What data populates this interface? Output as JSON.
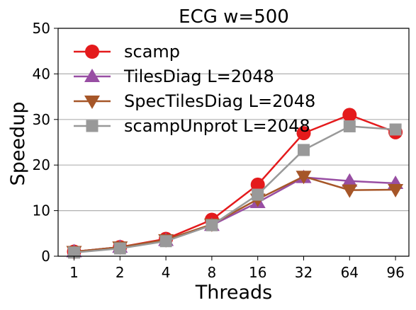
{
  "chart_data": {
    "type": "line",
    "title": "ECG w=500",
    "xlabel": "Threads",
    "ylabel": "Speedup",
    "categories": [
      "1",
      "2",
      "4",
      "8",
      "16",
      "32",
      "64",
      "96"
    ],
    "ylim": [
      0,
      50
    ],
    "yticks": [
      0,
      10,
      20,
      30,
      40,
      50
    ],
    "grid": "horizontal",
    "legend_position": "top-left",
    "series": [
      {
        "name": "scamp",
        "values": [
          1.0,
          2.0,
          3.8,
          8.0,
          15.7,
          27.0,
          31.0,
          27.2
        ],
        "color": "#e41a1c",
        "marker": "circle"
      },
      {
        "name": "TilesDiag L=2048",
        "values": [
          1.0,
          2.0,
          3.5,
          6.8,
          11.8,
          17.3,
          16.5,
          16.0
        ],
        "color": "#984ea3",
        "marker": "triangle-up"
      },
      {
        "name": "SpecTilesDiag L=2048",
        "values": [
          1.0,
          2.0,
          3.6,
          7.0,
          12.5,
          17.5,
          14.5,
          14.6
        ],
        "color": "#a65628",
        "marker": "triangle-down"
      },
      {
        "name": "scampUnprot L=2048",
        "values": [
          0.8,
          1.7,
          3.3,
          6.8,
          13.5,
          23.3,
          28.5,
          27.8
        ],
        "color": "#999999",
        "marker": "square"
      }
    ]
  }
}
